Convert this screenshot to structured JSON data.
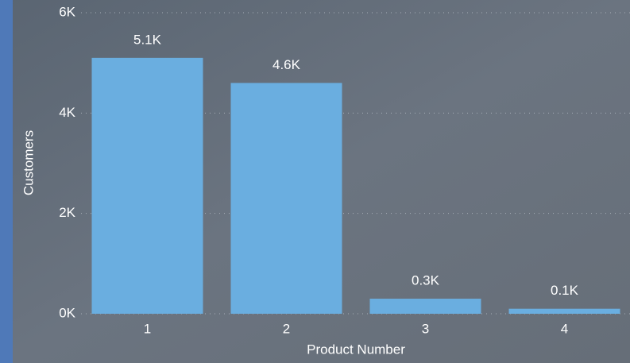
{
  "chart_data": {
    "type": "bar",
    "x_label": "Product Number",
    "y_label": "Customers",
    "categories": [
      "1",
      "2",
      "3",
      "4"
    ],
    "values": [
      5100,
      4600,
      300,
      100
    ],
    "value_labels": [
      "5.1K",
      "4.6K",
      "0.3K",
      "0.1K"
    ],
    "color": "#6aaee0",
    "ylim": [
      0,
      6000
    ],
    "yticks": [
      {
        "value": 0,
        "label": "0K"
      },
      {
        "value": 2000,
        "label": "2K"
      },
      {
        "value": 4000,
        "label": "4K"
      },
      {
        "value": 6000,
        "label": "6K"
      }
    ],
    "grid": true
  }
}
